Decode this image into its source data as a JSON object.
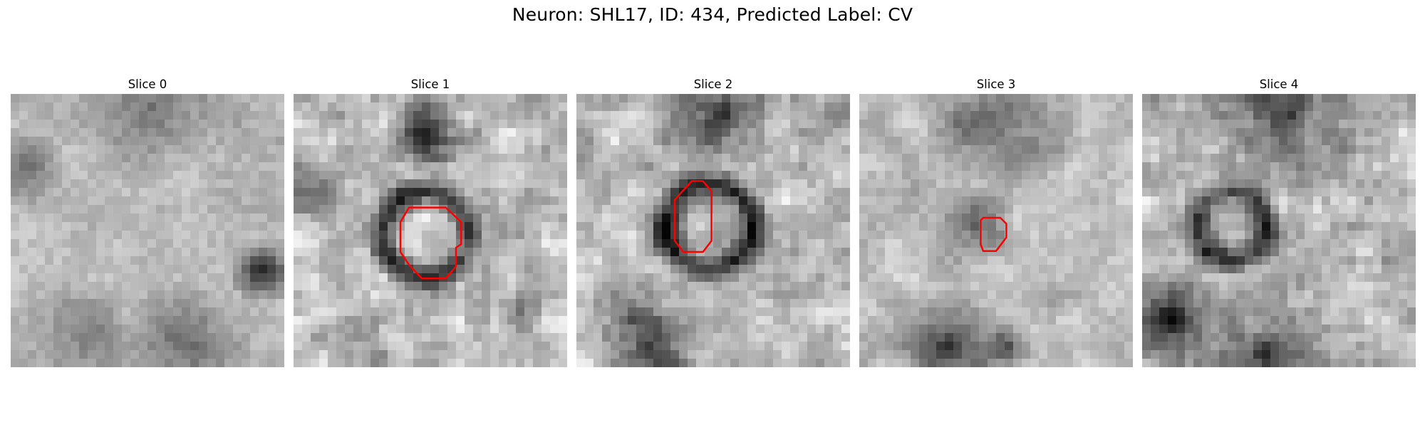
{
  "figure": {
    "title": "Neuron: SHL17, ID: 434, Predicted Label: CV",
    "overlay_color": "#ff0000",
    "colormap": "gray"
  },
  "panels": [
    {
      "title": "Slice 0"
    },
    {
      "title": "Slice 1"
    },
    {
      "title": "Slice 2"
    },
    {
      "title": "Slice 3"
    },
    {
      "title": "Slice 4"
    }
  ]
}
